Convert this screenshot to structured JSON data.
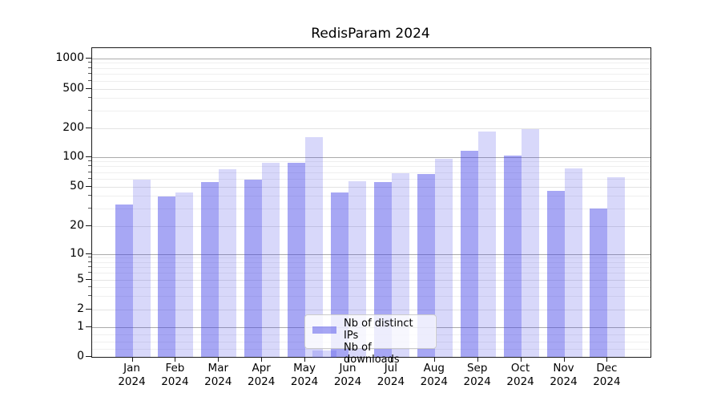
{
  "title": "RedisParam 2024",
  "chart_data": {
    "type": "bar",
    "title": "RedisParam 2024",
    "categories": [
      "Jan 2024",
      "Feb 2024",
      "Mar 2024",
      "Apr 2024",
      "May 2024",
      "Jun 2024",
      "Jul 2024",
      "Aug 2024",
      "Sep 2024",
      "Oct 2024",
      "Nov 2024",
      "Dec 2024"
    ],
    "series": [
      {
        "name": "Nb of distinct IPs",
        "color": "rgba(60,60,230,0.45)",
        "values": [
          33,
          40,
          56,
          59,
          87,
          44,
          56,
          68,
          116,
          104,
          46,
          30
        ]
      },
      {
        "name": "Nb of downloads",
        "color": "rgba(60,60,230,0.2)",
        "values": [
          59,
          44,
          76,
          87,
          162,
          57,
          69,
          96,
          185,
          196,
          77,
          63
        ]
      }
    ],
    "yscale": "symlog",
    "yticks": [
      0,
      1,
      2,
      5,
      10,
      20,
      50,
      100,
      200,
      500,
      1000
    ],
    "ylim": [
      0,
      1200
    ],
    "xlabel": "",
    "ylabel": "",
    "grid": true,
    "legend_position": "lower center"
  },
  "legend": {
    "items": [
      {
        "label": "Nb of distinct IPs",
        "color": "rgba(60,60,230,0.45)"
      },
      {
        "label": "Nb of downloads",
        "color": "rgba(60,60,230,0.2)"
      }
    ]
  }
}
